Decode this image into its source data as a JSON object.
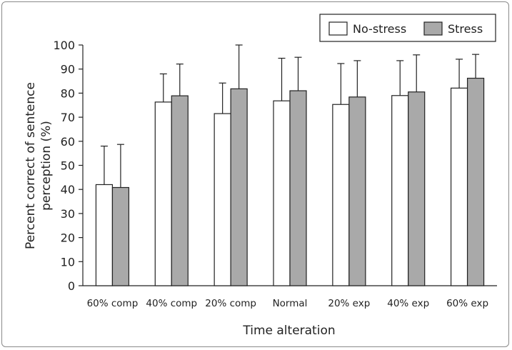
{
  "chart_data": {
    "type": "bar",
    "categories": [
      "60% comp",
      "40% comp",
      "20% comp",
      "Normal",
      "20% exp",
      "40% exp",
      "60% exp"
    ],
    "series": [
      {
        "name": "No-stress",
        "color": "#ffffff",
        "values": [
          42,
          76.3,
          71.5,
          76.8,
          75.3,
          79,
          82.1
        ],
        "error_upper": [
          58,
          88,
          84.2,
          94.5,
          92.3,
          93.5,
          94.1
        ]
      },
      {
        "name": "Stress",
        "color": "#a9a9a9",
        "values": [
          40.8,
          78.9,
          81.8,
          81,
          78.4,
          80.5,
          86.2
        ],
        "error_upper": [
          58.7,
          92.1,
          100,
          94.9,
          93.5,
          95.9,
          96.1
        ]
      }
    ],
    "ylim": [
      0,
      100
    ],
    "yticks": [
      0,
      10,
      20,
      30,
      40,
      50,
      60,
      70,
      80,
      90,
      100
    ],
    "xlabel": "Time alteration",
    "ylabel_lines": [
      "Percent correct of sentence",
      "perception (%)"
    ],
    "legend_position": "top-right",
    "grid": false
  }
}
